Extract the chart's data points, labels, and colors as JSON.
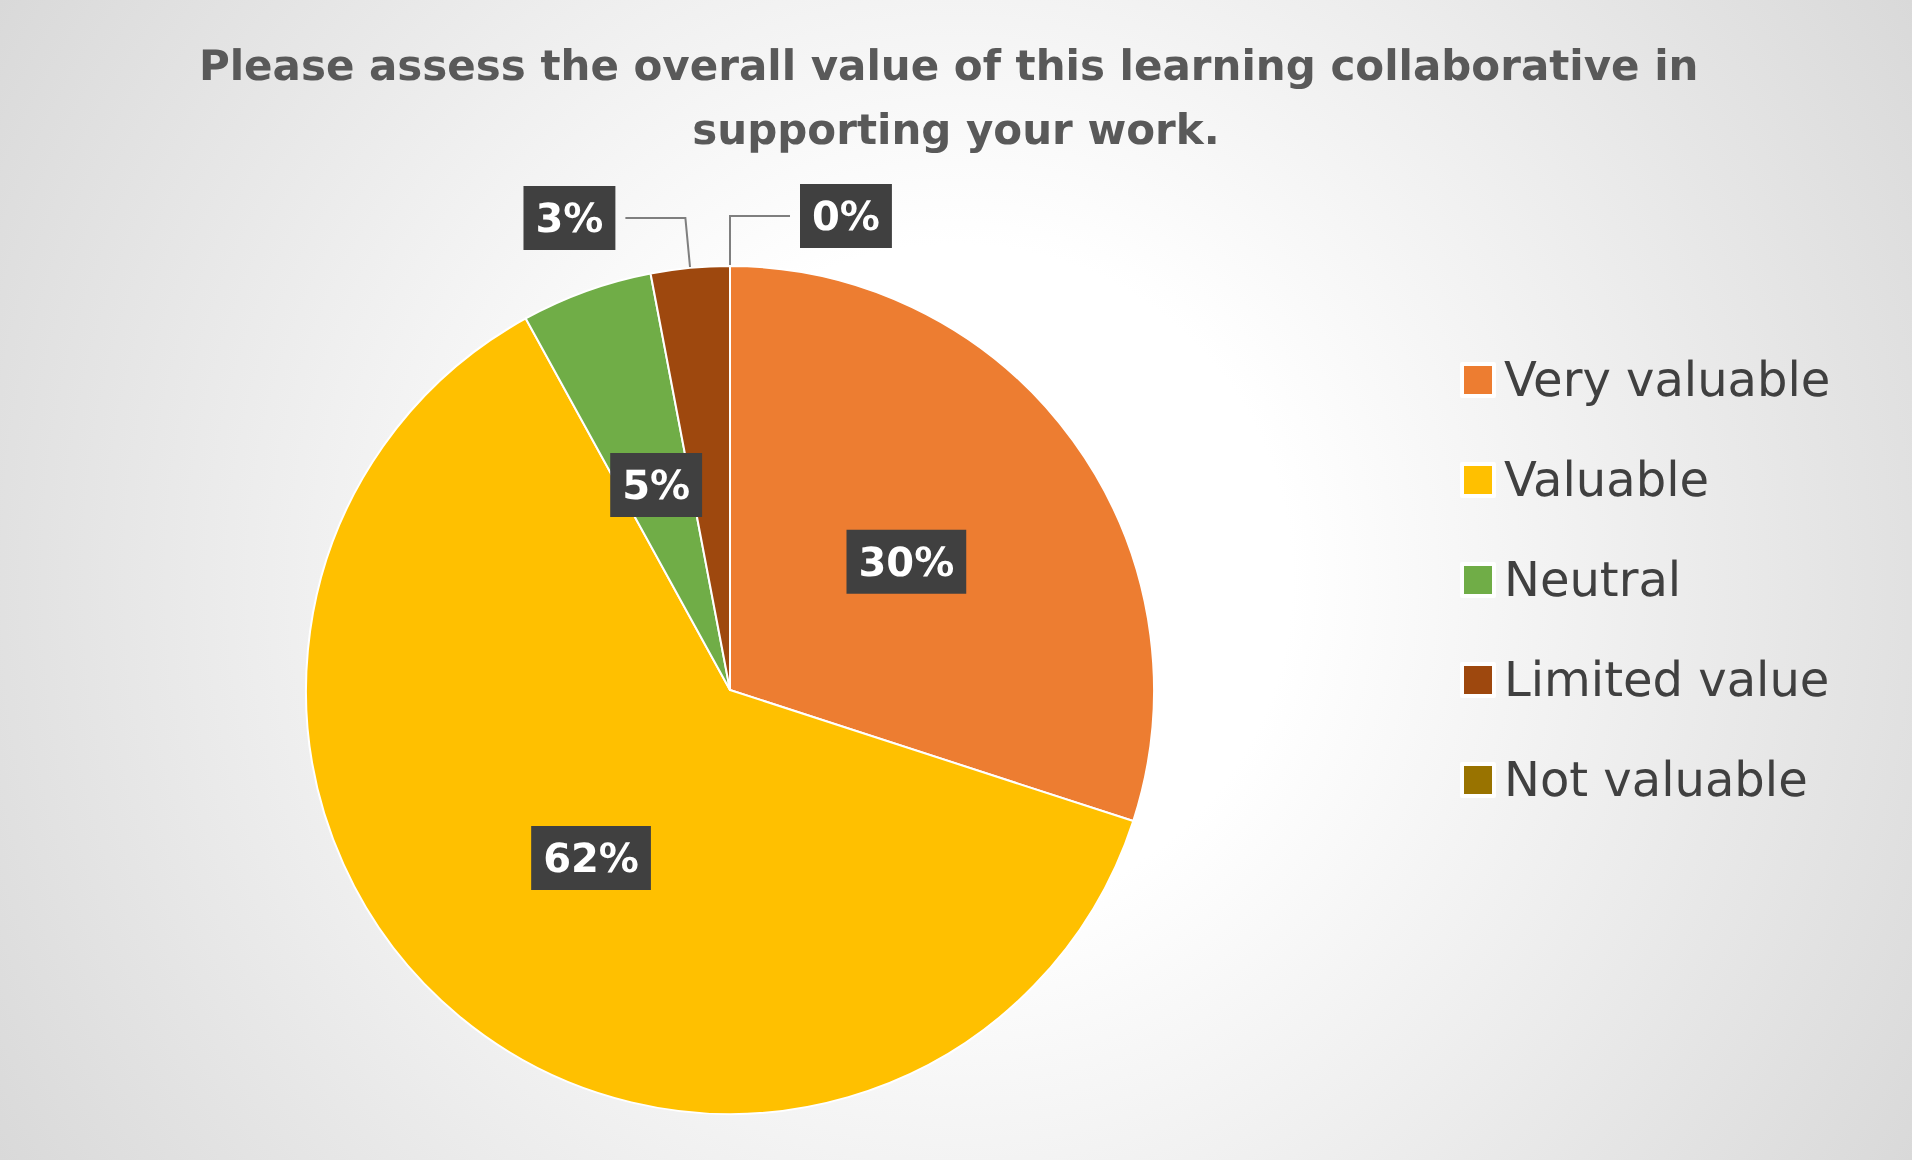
{
  "chart_data": {
    "type": "pie",
    "title": "Please assess the overall value of this learning collaborative in supporting your work.",
    "categories": [
      "Very valuable",
      "Valuable",
      "Neutral",
      "Limited value",
      "Not valuable"
    ],
    "values": [
      30,
      62,
      5,
      3,
      0
    ],
    "colors": [
      "#ed7d31",
      "#ffc000",
      "#70ad47",
      "#9e480e",
      "#997300"
    ],
    "value_labels": [
      "30%",
      "62%",
      "5%",
      "3%",
      "0%"
    ],
    "legend": "right"
  }
}
